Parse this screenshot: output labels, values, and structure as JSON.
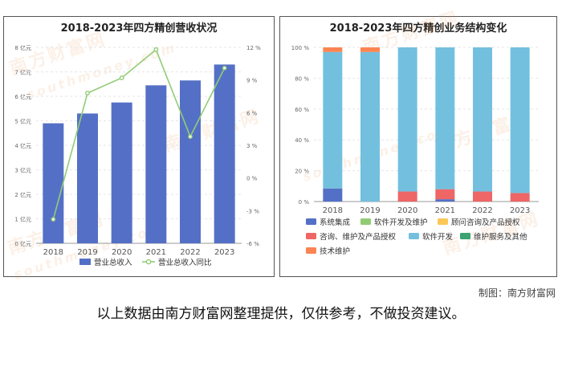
{
  "left_chart": {
    "title": "2018-2023年四方精创营收状况",
    "watermark": "南方财富网",
    "watermark2": "southmoney.com"
  },
  "right_chart": {
    "title": "2018-2023年四方精创业务结构变化",
    "watermark": "南方财富网",
    "watermark2": "southmoney.com"
  },
  "footer": {
    "credit": "制图：南方财富网",
    "disclaimer": "以上数据由南方财富网整理提供，仅供参考，不做投资建议。"
  },
  "chart_data": [
    {
      "type": "bar+line",
      "title": "2018-2023年四方精创营收状况",
      "categories": [
        "2018",
        "2019",
        "2020",
        "2021",
        "2022",
        "2023"
      ],
      "y_left": {
        "ticks": [
          "0 亿元",
          "1 亿元",
          "2 亿元",
          "3 亿元",
          "4 亿元",
          "5 亿元",
          "6 亿元",
          "7 亿元",
          "8 亿元"
        ],
        "ylim": [
          0,
          8
        ]
      },
      "y_right": {
        "ticks": [
          "-6 %",
          "-3 %",
          "0 %",
          "3 %",
          "6 %",
          "9 %",
          "12 %"
        ],
        "ylim": [
          -6,
          12
        ]
      },
      "series": [
        {
          "name": "营业总收入",
          "type": "bar",
          "axis": "left",
          "color": "#5470c6",
          "values": [
            4.9,
            5.3,
            5.75,
            6.45,
            6.65,
            7.3
          ]
        },
        {
          "name": "营业总收入同比",
          "type": "line",
          "axis": "right",
          "color": "#91cc75",
          "values": [
            -3.8,
            7.8,
            9.2,
            11.8,
            3.8,
            10.1
          ]
        }
      ],
      "legend_position": "bottom"
    },
    {
      "type": "stacked-bar",
      "title": "2018-2023年四方精创业务结构变化",
      "categories": [
        "2018",
        "2019",
        "2020",
        "2021",
        "2022",
        "2023"
      ],
      "y": {
        "ticks": [
          "0 %",
          "20 %",
          "40 %",
          "60 %",
          "80 %",
          "100 %"
        ],
        "ylim": [
          0,
          100
        ]
      },
      "series": [
        {
          "name": "系统集成",
          "color": "#5470c6",
          "values": [
            8.5,
            0,
            0,
            1.5,
            0,
            0
          ]
        },
        {
          "name": "软件开发及维护",
          "color": "#91cc75",
          "values": [
            0,
            0,
            0,
            0,
            0,
            0
          ]
        },
        {
          "name": "顾问咨询及产品授权",
          "color": "#fac858",
          "values": [
            0,
            0,
            0,
            0,
            0,
            0
          ]
        },
        {
          "name": "咨询、维护及产品授权",
          "color": "#ee6666",
          "values": [
            0,
            0,
            6.5,
            6.5,
            6.5,
            5.5
          ]
        },
        {
          "name": "软件开发",
          "color": "#73c0de",
          "values": [
            88.5,
            97,
            93.5,
            92,
            93.5,
            94.5
          ]
        },
        {
          "name": "维护服务及其他",
          "color": "#3ba272",
          "values": [
            0,
            0,
            0,
            0,
            0,
            0
          ]
        },
        {
          "name": "技术维护",
          "color": "#fc8452",
          "values": [
            3,
            3,
            0,
            0,
            0,
            0
          ]
        }
      ],
      "legend_position": "bottom"
    }
  ]
}
